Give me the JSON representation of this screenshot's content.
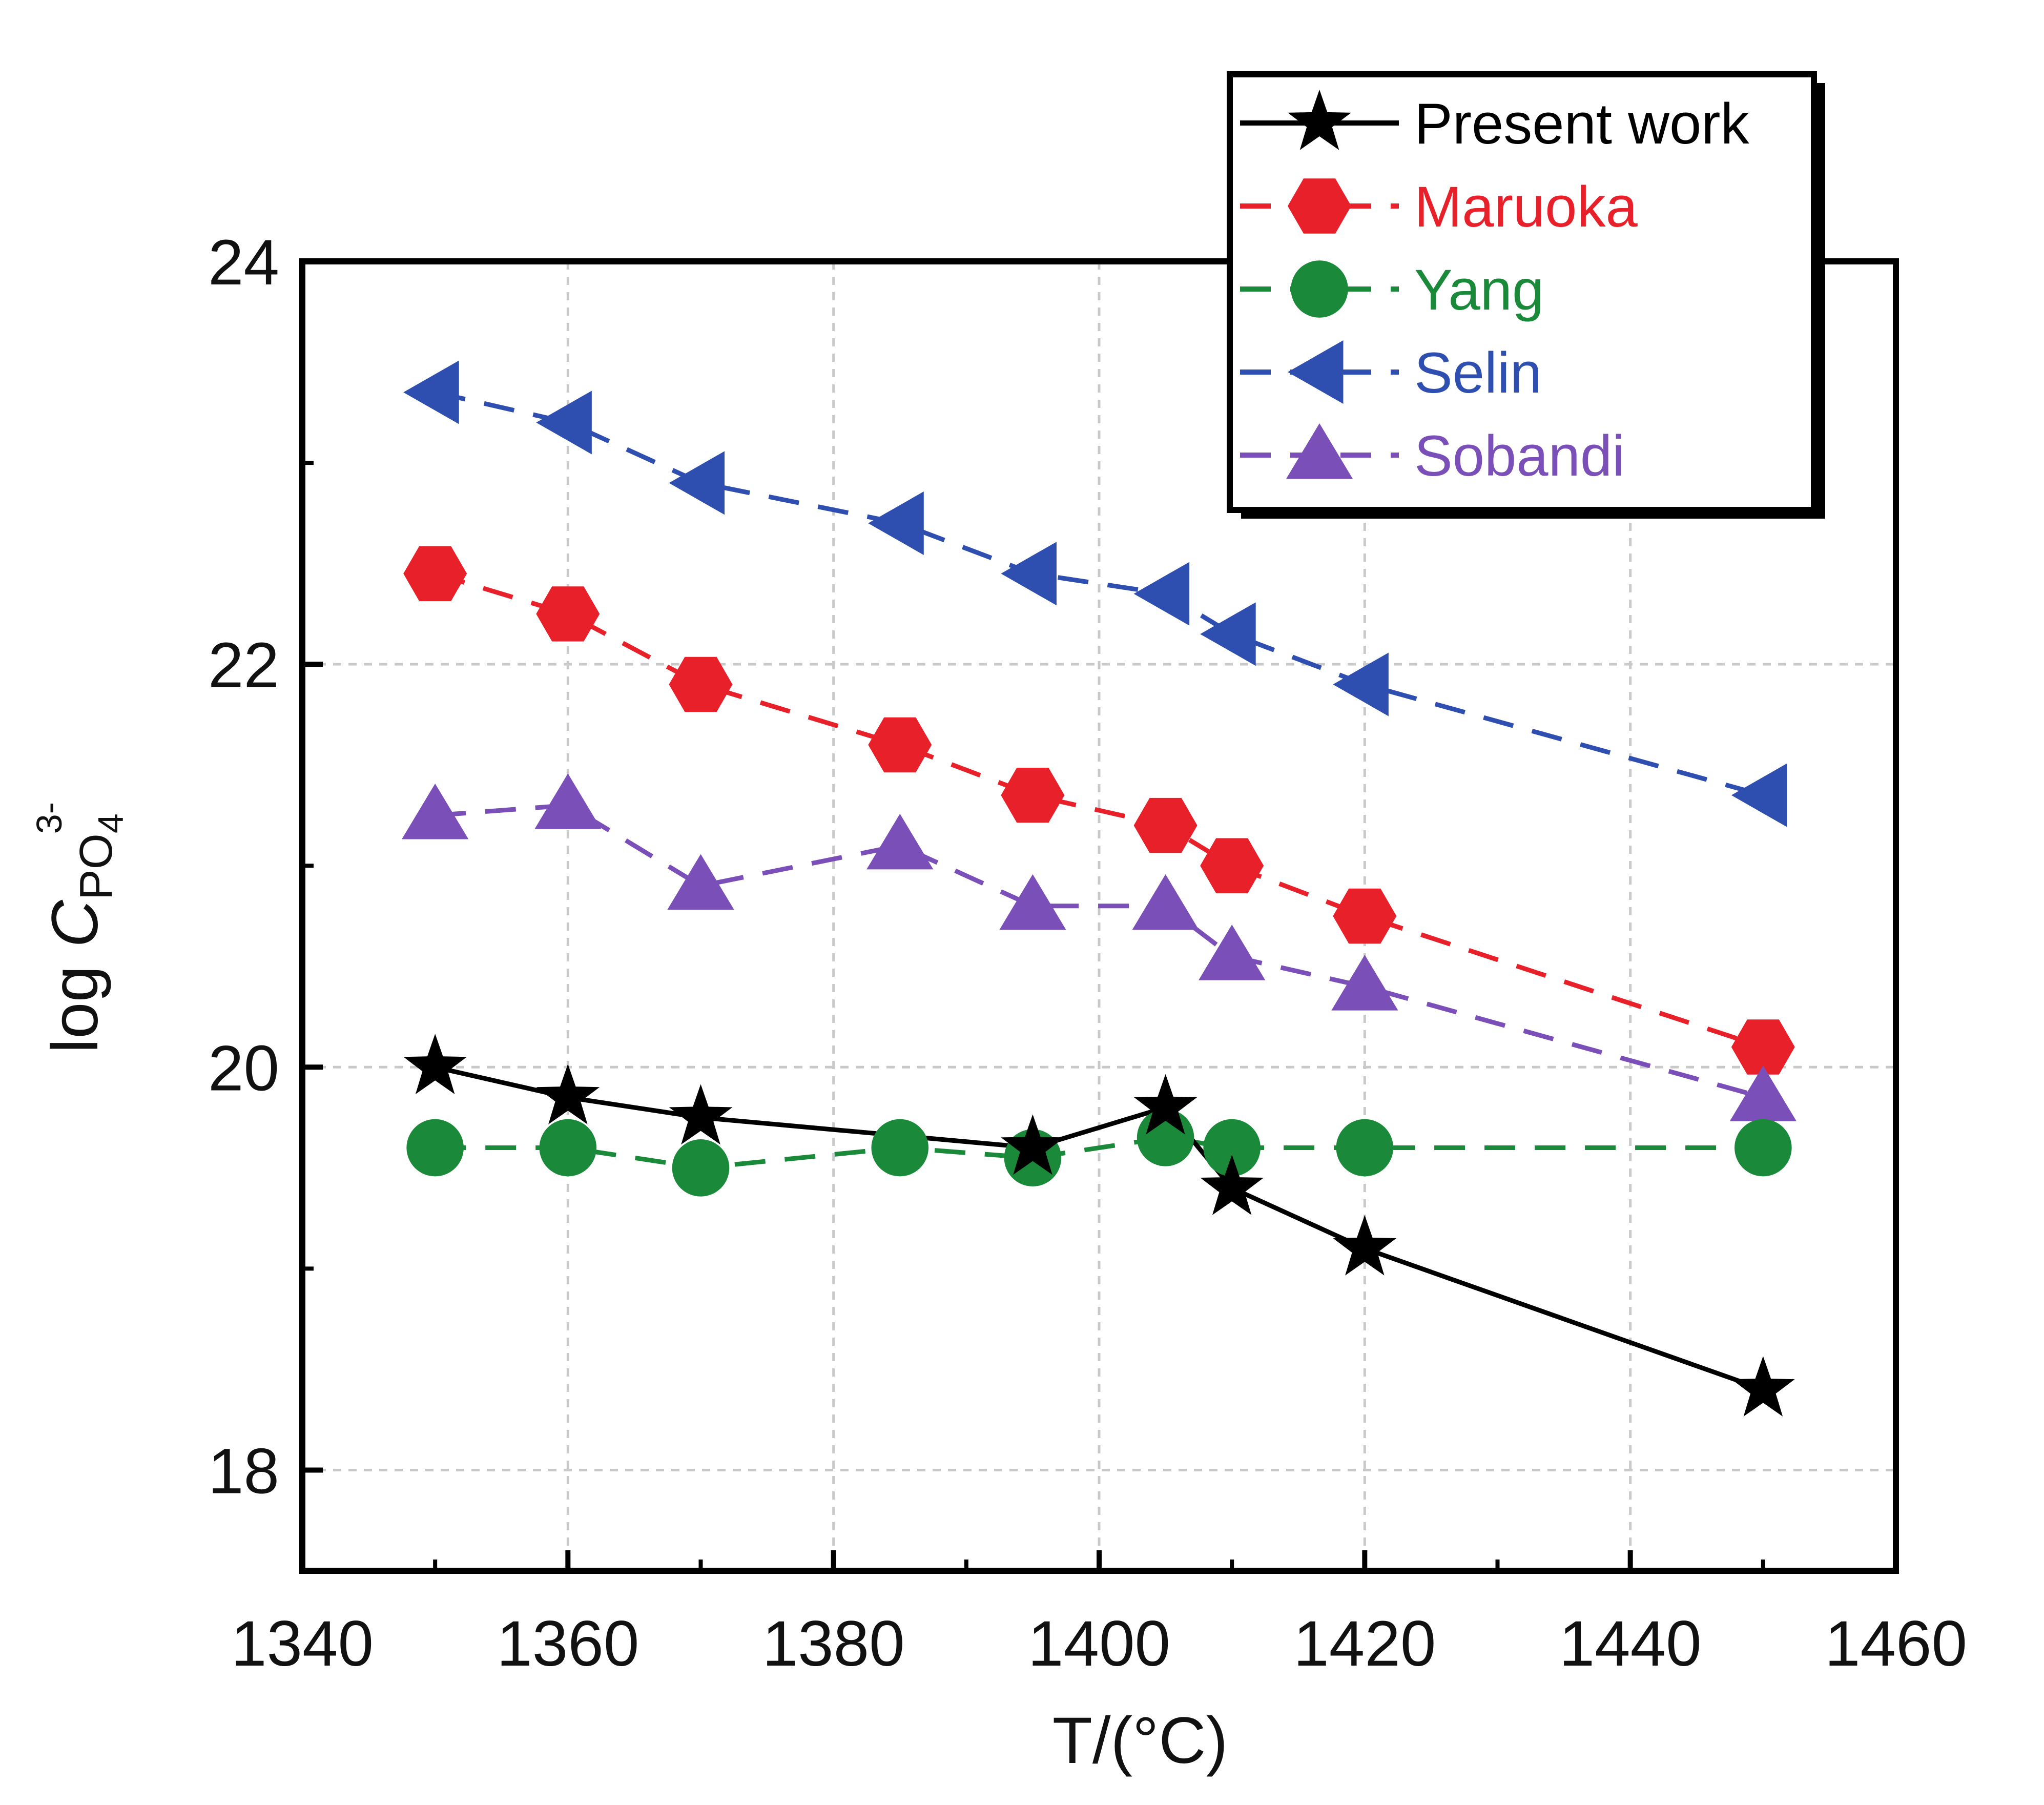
{
  "chart_data": {
    "type": "line",
    "title": "",
    "xlabel": "T/(°C)",
    "ylabel": {
      "prefix": "log ",
      "symbol": "C",
      "sub": "PO",
      "sub_index": "4",
      "sup": "3-"
    },
    "xlim": [
      1340,
      1460
    ],
    "ylim": [
      17.5,
      24
    ],
    "xticks": [
      "1340",
      "1360",
      "1380",
      "1400",
      "1420",
      "1440",
      "1460"
    ],
    "yticks": [
      "18",
      "20",
      "22",
      "24"
    ],
    "grid": true,
    "legend_position": "top-right",
    "series": [
      {
        "name": "Present work",
        "color": "#000000",
        "marker": "star",
        "line": "solid",
        "x": [
          1350,
          1360,
          1370,
          1395,
          1405,
          1410,
          1420,
          1450
        ],
        "y": [
          20.0,
          19.85,
          19.75,
          19.6,
          19.8,
          19.4,
          19.1,
          18.4
        ]
      },
      {
        "name": "Maruoka",
        "color": "#e8202a",
        "marker": "hexagon",
        "line": "dashed",
        "x": [
          1350,
          1360,
          1370,
          1385,
          1395,
          1405,
          1410,
          1420,
          1450
        ],
        "y": [
          22.45,
          22.25,
          21.9,
          21.6,
          21.35,
          21.2,
          21.0,
          20.75,
          20.1
        ]
      },
      {
        "name": "Yang",
        "color": "#1a8a3a",
        "marker": "circle",
        "line": "dashed",
        "x": [
          1350,
          1360,
          1370,
          1385,
          1395,
          1405,
          1410,
          1420,
          1450
        ],
        "y": [
          19.6,
          19.6,
          19.5,
          19.6,
          19.55,
          19.65,
          19.6,
          19.6,
          19.6
        ]
      },
      {
        "name": "Selin",
        "color": "#2f4fb0",
        "marker": "triangle-left",
        "line": "dashed",
        "x": [
          1350,
          1360,
          1370,
          1385,
          1395,
          1405,
          1410,
          1420,
          1450
        ],
        "y": [
          23.35,
          23.2,
          22.9,
          22.7,
          22.45,
          22.35,
          22.15,
          21.9,
          21.35
        ]
      },
      {
        "name": "Sobandi",
        "color": "#7b4fb8",
        "marker": "triangle-up",
        "line": "dashed",
        "x": [
          1350,
          1360,
          1370,
          1385,
          1395,
          1405,
          1410,
          1420,
          1450
        ],
        "y": [
          21.25,
          21.3,
          20.9,
          21.1,
          20.8,
          20.8,
          20.55,
          20.4,
          19.85
        ]
      }
    ]
  }
}
